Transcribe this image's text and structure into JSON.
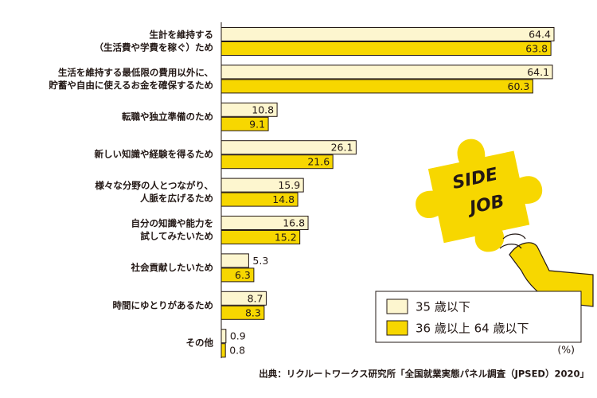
{
  "chart_data": {
    "type": "hbar",
    "categories": [
      [
        "生計を維持する",
        "（生活費や学費を稼ぐ）ため"
      ],
      [
        "生活を維持する最低限の費用以外に、",
        "貯蓄や自由に使えるお金を確保するため"
      ],
      [
        "転職や独立準備のため"
      ],
      [
        "新しい知識や経験を得るため"
      ],
      [
        "様々な分野の人とつながり、",
        "人脈を広げるため"
      ],
      [
        "自分の知識や能力を",
        "試してみたいため"
      ],
      [
        "社会貢献したいため"
      ],
      [
        "時間にゆとりがあるため"
      ],
      [
        "その他"
      ]
    ],
    "series": [
      {
        "name": "35 歳以下",
        "color": "#fdf6cf",
        "values": [
          64.4,
          64.1,
          10.8,
          26.1,
          15.9,
          16.8,
          5.3,
          8.7,
          0.9
        ]
      },
      {
        "name": "36 歳以上 64 歳以下",
        "color": "#f7d700",
        "values": [
          63.8,
          60.3,
          9.1,
          21.6,
          14.8,
          15.2,
          6.3,
          8.3,
          0.8
        ]
      }
    ],
    "unit": "(%)",
    "source": "出典：リクルートワークス研究所「全国就業実態パネル調査（JPSED）2020」",
    "illustration_text": [
      "SIDE",
      "JOB"
    ]
  }
}
